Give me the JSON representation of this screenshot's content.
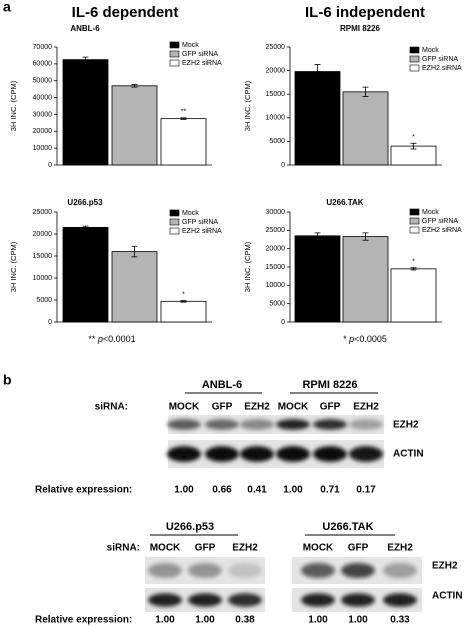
{
  "panel_a_label": "a",
  "headings": [
    "IL-6 dependent",
    "IL-6 independent"
  ],
  "chart_data": [
    {
      "type": "bar",
      "title": "ANBL-6",
      "ylabel": "3H INC. (CPM)",
      "categories": [
        "Mock",
        "GFP siRNA",
        "EZH2 siRNA"
      ],
      "colors": [
        "#000000",
        "#b4b4b4",
        "#ffffff"
      ],
      "values": [
        62500,
        47000,
        27500
      ],
      "errors": [
        1500,
        800,
        500
      ],
      "ylim": [
        0,
        70000
      ],
      "yticks": [
        0,
        10000,
        20000,
        30000,
        40000,
        50000,
        60000,
        70000
      ],
      "annotation": "**"
    },
    {
      "type": "bar",
      "title": "RPMI 8226",
      "ylabel": "3H INC. (CPM)",
      "categories": [
        "Mock",
        "GFP siRNA",
        "EZH2 siRNA"
      ],
      "colors": [
        "#000000",
        "#b4b4b4",
        "#ffffff"
      ],
      "values": [
        19800,
        15500,
        4000
      ],
      "errors": [
        1500,
        1000,
        600
      ],
      "ylim": [
        0,
        25000
      ],
      "yticks": [
        0,
        5000,
        10000,
        15000,
        20000,
        25000
      ],
      "annotation": "*"
    },
    {
      "type": "bar",
      "title": "U266.p53",
      "ylabel": "3H INC. (CPM)",
      "categories": [
        "Mock",
        "GFP siRNA",
        "EZH2 siRNA"
      ],
      "colors": [
        "#000000",
        "#b4b4b4",
        "#ffffff"
      ],
      "values": [
        21500,
        16000,
        4700
      ],
      "errors": [
        300,
        1200,
        200
      ],
      "ylim": [
        0,
        25000
      ],
      "yticks": [
        0,
        5000,
        10000,
        15000,
        20000,
        25000
      ],
      "annotation": "*"
    },
    {
      "type": "bar",
      "title": "U266.TAK",
      "ylabel": "3H INC. (CPM)",
      "categories": [
        "Mock",
        "GFP siRNA",
        "EZH2 siRNA"
      ],
      "colors": [
        "#000000",
        "#b4b4b4",
        "#ffffff"
      ],
      "values": [
        23500,
        23300,
        14500
      ],
      "errors": [
        800,
        1000,
        300
      ],
      "ylim": [
        0,
        30000
      ],
      "yticks": [
        0,
        5000,
        10000,
        15000,
        20000,
        25000,
        30000
      ],
      "annotation": "*"
    }
  ],
  "footnotes": [
    {
      "stars": "**",
      "p": "p",
      "text": "<0.0001"
    },
    {
      "stars": "*",
      "p": "p",
      "text": "<0.0005"
    }
  ],
  "panel_b": {
    "label": "b",
    "top": {
      "groups": [
        "ANBL-6",
        "RPMI 8226"
      ],
      "sirna_label": "siRNA:",
      "lanes": [
        "MOCK",
        "GFP",
        "EZH2",
        "MOCK",
        "GFP",
        "EZH2"
      ],
      "bands": [
        "EZH2",
        "ACTIN"
      ],
      "rel_label": "Relative expression:",
      "rel": [
        "1.00",
        "0.66",
        "0.41",
        "1.00",
        "0.71",
        "0.17"
      ]
    },
    "bottom": {
      "groups": [
        "U266.p53",
        "U266.TAK"
      ],
      "sirna_label": "siRNA:",
      "lanes": [
        "MOCK",
        "GFP",
        "EZH2",
        "MOCK",
        "GFP",
        "EZH2"
      ],
      "bands": [
        "EZH2",
        "ACTIN"
      ],
      "rel_label": "Relative expression:",
      "rel": [
        "1.00",
        "1.00",
        "0.38",
        "1.00",
        "1.00",
        "0.33"
      ]
    }
  }
}
